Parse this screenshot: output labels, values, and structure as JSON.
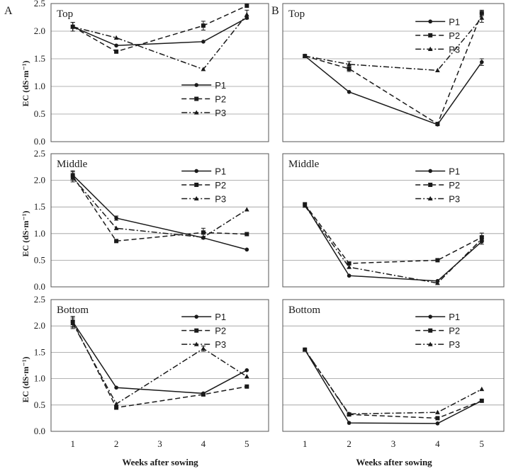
{
  "figure": {
    "panel_letters": [
      "A",
      "B"
    ],
    "ylabel": "EC (dS·m⁻¹)",
    "xlabel": "Weeks after sowing",
    "xticks": [
      "1",
      "2",
      "3",
      "4",
      "5"
    ],
    "yticks": [
      "0.0",
      "0.5",
      "1.0",
      "1.5",
      "2.0",
      "2.5"
    ],
    "colors": {
      "line": "#1a1a1a",
      "grid": "#9a9a9a",
      "frame": "#555555"
    }
  },
  "chart_data": [
    {
      "id": "A-top",
      "type": "line",
      "title": "Top",
      "ylim": [
        0,
        2.5
      ],
      "xlim": [
        0.5,
        5.5
      ],
      "grid": true,
      "legend_position": "bottom-right",
      "series": [
        {
          "name": "P1",
          "style": "solid",
          "marker": "circle",
          "x": [
            1,
            2,
            4,
            5
          ],
          "y": [
            2.08,
            1.74,
            1.81,
            2.24
          ],
          "err": [
            0.08,
            0,
            0,
            0
          ]
        },
        {
          "name": "P2",
          "style": "dashed",
          "marker": "square",
          "x": [
            1,
            2,
            4,
            5
          ],
          "y": [
            2.08,
            1.63,
            2.1,
            2.46
          ],
          "err": [
            0.08,
            0,
            0.08,
            0
          ]
        },
        {
          "name": "P3",
          "style": "dashdot",
          "marker": "triangle",
          "x": [
            1,
            2,
            4,
            5
          ],
          "y": [
            2.08,
            1.88,
            1.31,
            2.3
          ],
          "err": [
            0.08,
            0,
            0,
            0.08
          ]
        }
      ]
    },
    {
      "id": "B-top",
      "type": "line",
      "title": "Top",
      "ylim": [
        0,
        2.5
      ],
      "xlim": [
        0.5,
        5.5
      ],
      "grid": true,
      "legend_position": "top-right",
      "series": [
        {
          "name": "P1",
          "style": "solid",
          "marker": "circle",
          "x": [
            1,
            2,
            4,
            5
          ],
          "y": [
            1.55,
            0.9,
            0.31,
            1.44
          ],
          "err": [
            0,
            0,
            0,
            0.06
          ]
        },
        {
          "name": "P2",
          "style": "dashed",
          "marker": "square",
          "x": [
            1,
            2,
            4,
            5
          ],
          "y": [
            1.55,
            1.32,
            0.32,
            2.33
          ],
          "err": [
            0,
            0.05,
            0,
            0.05
          ]
        },
        {
          "name": "P3",
          "style": "dashdot",
          "marker": "triangle",
          "x": [
            1,
            2,
            4,
            5
          ],
          "y": [
            1.55,
            1.4,
            1.29,
            2.24
          ],
          "err": [
            0,
            0.05,
            0,
            0.08
          ]
        }
      ]
    },
    {
      "id": "A-middle",
      "type": "line",
      "title": "Middle",
      "ylim": [
        0,
        2.5
      ],
      "xlim": [
        0.5,
        5.5
      ],
      "grid": true,
      "legend_position": "top-right",
      "series": [
        {
          "name": "P1",
          "style": "solid",
          "marker": "circle",
          "x": [
            1,
            2,
            4,
            5
          ],
          "y": [
            2.1,
            1.29,
            0.92,
            0.7
          ],
          "err": [
            0.08,
            0.04,
            0,
            0
          ]
        },
        {
          "name": "P2",
          "style": "dashed",
          "marker": "square",
          "x": [
            1,
            2,
            4,
            5
          ],
          "y": [
            2.08,
            0.86,
            1.02,
            0.99
          ],
          "err": [
            0.08,
            0,
            0.08,
            0
          ]
        },
        {
          "name": "P3",
          "style": "dashdot",
          "marker": "triangle",
          "x": [
            1,
            2,
            4,
            5
          ],
          "y": [
            2.05,
            1.1,
            0.93,
            1.45
          ],
          "err": [
            0.08,
            0,
            0,
            0
          ]
        }
      ]
    },
    {
      "id": "B-middle",
      "type": "line",
      "title": "Middle",
      "ylim": [
        0,
        2.5
      ],
      "xlim": [
        0.5,
        5.5
      ],
      "grid": true,
      "legend_position": "top-right",
      "series": [
        {
          "name": "P1",
          "style": "solid",
          "marker": "circle",
          "x": [
            1,
            2,
            4,
            5
          ],
          "y": [
            1.55,
            0.21,
            0.11,
            0.85
          ],
          "err": [
            0,
            0,
            0,
            0.05
          ]
        },
        {
          "name": "P2",
          "style": "dashed",
          "marker": "square",
          "x": [
            1,
            2,
            4,
            5
          ],
          "y": [
            1.55,
            0.44,
            0.5,
            0.93
          ],
          "err": [
            0,
            0,
            0,
            0.08
          ]
        },
        {
          "name": "P3",
          "style": "dashdot",
          "marker": "triangle",
          "x": [
            1,
            2,
            4,
            5
          ],
          "y": [
            1.52,
            0.37,
            0.07,
            0.9
          ],
          "err": [
            0,
            0,
            0,
            0.05
          ]
        }
      ]
    },
    {
      "id": "A-bottom",
      "type": "line",
      "title": "Bottom",
      "ylim": [
        0,
        2.5
      ],
      "xlim": [
        0.5,
        5.5
      ],
      "grid": true,
      "legend_position": "top-right",
      "series": [
        {
          "name": "P1",
          "style": "solid",
          "marker": "circle",
          "x": [
            1,
            2,
            4,
            5
          ],
          "y": [
            2.08,
            0.83,
            0.72,
            1.16
          ],
          "err": [
            0.1,
            0,
            0,
            0
          ]
        },
        {
          "name": "P2",
          "style": "dashed",
          "marker": "square",
          "x": [
            1,
            2,
            4,
            5
          ],
          "y": [
            2.08,
            0.45,
            0.7,
            0.85
          ],
          "err": [
            0.1,
            0,
            0,
            0
          ]
        },
        {
          "name": "P3",
          "style": "dashdot",
          "marker": "triangle",
          "x": [
            1,
            2,
            4,
            5
          ],
          "y": [
            2.05,
            0.52,
            1.57,
            1.04
          ],
          "err": [
            0.1,
            0,
            0.05,
            0
          ]
        }
      ]
    },
    {
      "id": "B-bottom",
      "type": "line",
      "title": "Bottom",
      "ylim": [
        0,
        2.5
      ],
      "xlim": [
        0.5,
        5.5
      ],
      "grid": true,
      "legend_position": "top-right",
      "series": [
        {
          "name": "P1",
          "style": "solid",
          "marker": "circle",
          "x": [
            1,
            2,
            4,
            5
          ],
          "y": [
            1.55,
            0.16,
            0.15,
            0.58
          ],
          "err": [
            0,
            0,
            0,
            0
          ]
        },
        {
          "name": "P2",
          "style": "dashed",
          "marker": "square",
          "x": [
            1,
            2,
            4,
            5
          ],
          "y": [
            1.55,
            0.32,
            0.25,
            0.58
          ],
          "err": [
            0,
            0,
            0,
            0
          ]
        },
        {
          "name": "P3",
          "style": "dashdot",
          "marker": "triangle",
          "x": [
            1,
            2,
            4,
            5
          ],
          "y": [
            1.55,
            0.33,
            0.36,
            0.8
          ],
          "err": [
            0,
            0,
            0,
            0
          ]
        }
      ]
    }
  ]
}
